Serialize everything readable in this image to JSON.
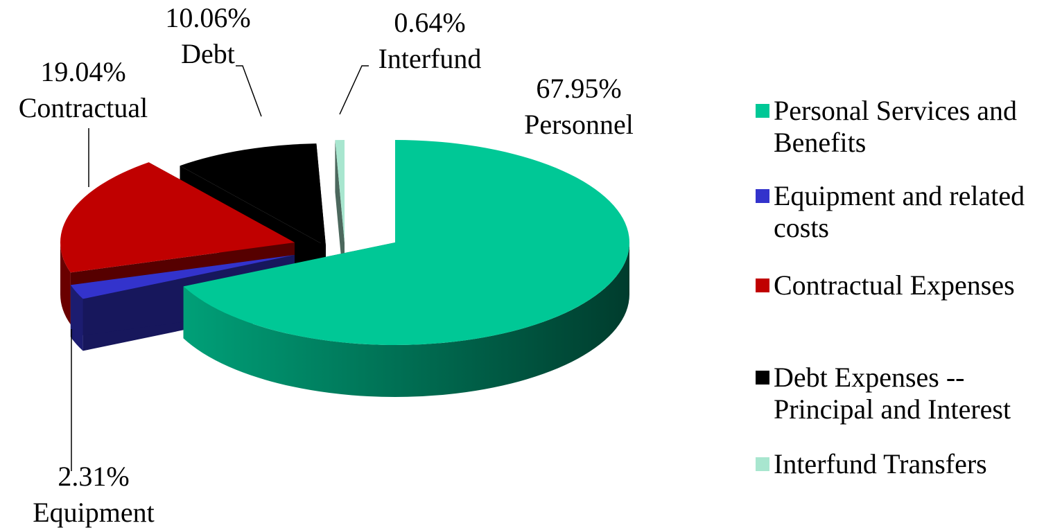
{
  "chart_data": {
    "type": "pie",
    "categories": [
      "Personal Services and Benefits",
      "Equipment and related costs",
      "Contractual Expenses",
      "Debt Expenses -- Principal and Interest",
      "Interfund Transfers"
    ],
    "values": [
      67.95,
      2.31,
      19.04,
      10.06,
      0.64
    ],
    "value_labels": [
      "67.95%",
      "2.31%",
      "19.04%",
      "10.06%",
      "0.64%"
    ],
    "data_label_names": [
      "Personnel",
      "Equipment",
      "Contractual",
      "Debt",
      "Interfund"
    ],
    "colors": [
      "#00c896",
      "#3333cc",
      "#c00000",
      "#000000",
      "#a8e6cf"
    ],
    "exploded": true,
    "three_d": true,
    "legend": "right"
  }
}
